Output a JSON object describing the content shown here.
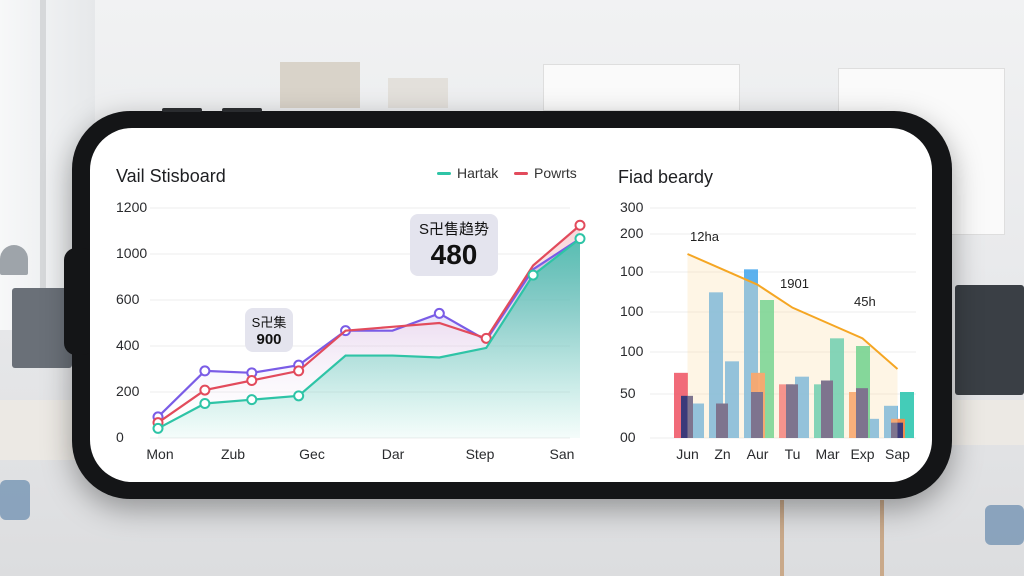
{
  "colors": {
    "teal": "#2ec4a6",
    "red": "#e24b5c",
    "purple": "#7a5ce6",
    "orange": "#f5a623",
    "bar_blue": "#4aa9ec",
    "bar_green": "#3ccf86",
    "bar_navy": "#3b3a7a",
    "bar_red": "#ef5b6a",
    "bar_orange": "#f7894a",
    "bar_teal": "#30c7b0"
  },
  "left_panel": {
    "title": "Vail Stisboard",
    "legend": [
      "Hartak",
      "Powrts"
    ],
    "callout_small": {
      "caption": "S卍集",
      "value": "900"
    },
    "callout_large": {
      "caption": "S卍售趋势",
      "value": "480"
    }
  },
  "right_panel": {
    "title": "Fiad beardy",
    "annotations": [
      "12ha",
      "1901",
      "45h"
    ]
  },
  "chart_data": [
    {
      "type": "line",
      "title": "Vail Stisboard",
      "xlabel": "",
      "ylabel": "",
      "ylim": [
        0,
        1200
      ],
      "yticks": [
        "0",
        "200",
        "400",
        "600",
        "1000",
        "1200"
      ],
      "x_tick_labels": [
        "Mon",
        "Zub",
        "Gec",
        "Dar",
        "Step",
        "San"
      ],
      "legend_position": "top-right",
      "grid": true,
      "x": [
        0,
        1,
        2,
        3,
        4,
        5,
        6,
        7,
        8,
        9
      ],
      "series": [
        {
          "name": "Hartak",
          "values": [
            50,
            180,
            200,
            220,
            430,
            430,
            420,
            470,
            850,
            1040
          ]
        },
        {
          "name": "Powrts",
          "values": [
            80,
            250,
            300,
            350,
            560,
            580,
            600,
            520,
            900,
            1110
          ]
        },
        {
          "values": [
            110,
            350,
            340,
            380,
            560,
            560,
            650,
            510,
            880,
            1040
          ]
        }
      ]
    },
    {
      "type": "bar",
      "title": "Fiad beardy",
      "xlabel": "",
      "ylabel": "",
      "ylim": [
        0,
        300
      ],
      "yticks": [
        "00",
        "50",
        "100",
        "100",
        "100",
        "200",
        "300"
      ],
      "categories": [
        "Jun",
        "Zn",
        "Aur",
        "Tu",
        "Mar",
        "Exp",
        "Sap"
      ],
      "grid": true,
      "series": [
        {
          "values": [
            85,
            190,
            220,
            70,
            70,
            60,
            42
          ]
        },
        {
          "values": [
            45,
            100,
            180,
            80,
            130,
            25,
            60
          ]
        },
        {
          "values": [
            55,
            45,
            60,
            70,
            75,
            65,
            20
          ]
        },
        {
          "values": [
            0,
            0,
            25,
            0,
            0,
            55,
            5
          ]
        }
      ],
      "trend_line": [
        240,
        220,
        200,
        170,
        150,
        130,
        90
      ]
    }
  ]
}
